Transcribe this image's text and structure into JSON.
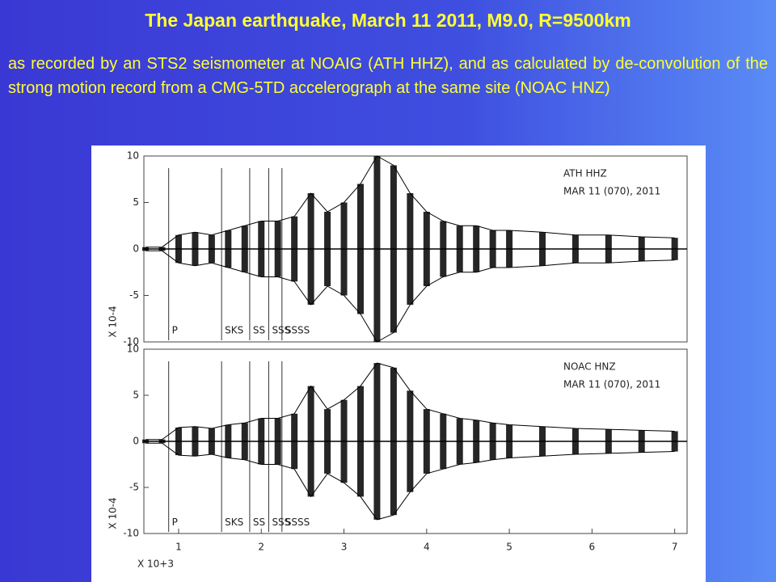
{
  "slide": {
    "title": "The Japan earthquake, March 11 2011, M9.0, R=9500km",
    "body": "as recorded by an STS2 seismometer at NOAIG (ATH HHZ), and as calculated by de-convolution of the strong motion record from a CMG-5TD accelerograph at the same site (NOAC HNZ)"
  },
  "chart_data": [
    {
      "type": "envelope",
      "station": "ATH   HHZ",
      "date": "MAR 11 (070), 2011",
      "ylabel": "X 10-4",
      "x": [
        0.6,
        0.8,
        1.0,
        1.2,
        1.4,
        1.6,
        1.8,
        2.0,
        2.2,
        2.4,
        2.6,
        2.8,
        3.0,
        3.2,
        3.4,
        3.6,
        3.8,
        4.0,
        4.2,
        4.4,
        4.6,
        4.8,
        5.0,
        5.4,
        5.8,
        6.2,
        6.6,
        7.0
      ],
      "series": [
        {
          "color": "#000000",
          "values": [
            0.2,
            0.2,
            1.5,
            1.8,
            1.5,
            2,
            2.5,
            3,
            3,
            3.5,
            6,
            4,
            5,
            7,
            10,
            9,
            6,
            4,
            3,
            2.5,
            2.5,
            2,
            2,
            1.8,
            1.5,
            1.5,
            1.3,
            1.2
          ]
        }
      ],
      "xlim": [
        0.58,
        7.15
      ],
      "ylim": [
        -10,
        10
      ],
      "yticks": [
        -10,
        -5,
        0,
        5,
        10
      ],
      "phases": [
        {
          "value": 0.88,
          "label": "P"
        },
        {
          "value": 1.52,
          "label": "SKS"
        },
        {
          "value": 1.86,
          "label": "SS"
        },
        {
          "value": 2.09,
          "label": "SSS"
        },
        {
          "value": 2.25,
          "label": "SSSS"
        }
      ]
    },
    {
      "type": "envelope",
      "station": "NOAC   HNZ",
      "date": "MAR 11 (070), 2011",
      "ylabel": "X 10-4",
      "xlabel": "X 10+3",
      "x": [
        0.6,
        0.8,
        1.0,
        1.2,
        1.4,
        1.6,
        1.8,
        2.0,
        2.2,
        2.4,
        2.6,
        2.8,
        3.0,
        3.2,
        3.4,
        3.6,
        3.8,
        4.0,
        4.2,
        4.4,
        4.6,
        4.8,
        5.0,
        5.4,
        5.8,
        6.2,
        6.6,
        7.0
      ],
      "series": [
        {
          "color": "#000000",
          "values": [
            0.2,
            0.2,
            1.5,
            1.6,
            1.4,
            1.8,
            2,
            2.5,
            2.5,
            3,
            6,
            3.5,
            4.5,
            6,
            8.5,
            8,
            5.5,
            3.5,
            3,
            2.5,
            2.3,
            2,
            1.8,
            1.6,
            1.4,
            1.3,
            1.2,
            1.1
          ]
        }
      ],
      "xlim": [
        0.58,
        7.15
      ],
      "ylim": [
        -10,
        10
      ],
      "yticks": [
        -10,
        -5,
        0,
        5,
        10
      ],
      "xticks": [
        1,
        2,
        3,
        4,
        5,
        6,
        7
      ],
      "phases": [
        {
          "value": 0.88,
          "label": "P"
        },
        {
          "value": 1.52,
          "label": "SKS"
        },
        {
          "value": 1.86,
          "label": "SS"
        },
        {
          "value": 2.09,
          "label": "SSS"
        },
        {
          "value": 2.25,
          "label": "SSSS"
        }
      ]
    }
  ]
}
